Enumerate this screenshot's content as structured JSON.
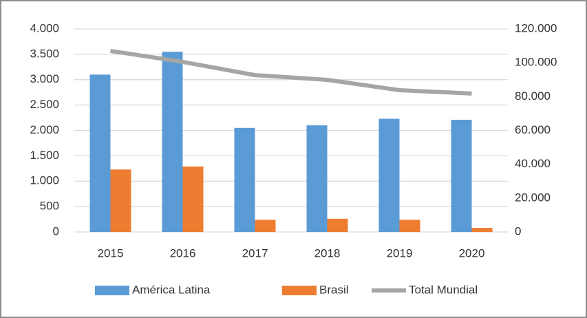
{
  "chart_data": {
    "type": "bar",
    "categories": [
      "2015",
      "2016",
      "2017",
      "2018",
      "2019",
      "2020"
    ],
    "series": [
      {
        "name": "América Latina",
        "color": "#5b9bd5",
        "values": [
          3100,
          3550,
          2050,
          2100,
          2230,
          2210
        ]
      },
      {
        "name": "Brasil",
        "color": "#ed7d31",
        "values": [
          1230,
          1290,
          240,
          260,
          240,
          80
        ]
      },
      {
        "name": "Total Mundial",
        "color": "#a5a5a5",
        "type": "line",
        "axis": "y2",
        "values": [
          107000,
          100500,
          92700,
          89900,
          83800,
          81800
        ]
      }
    ],
    "ylim": [
      0,
      4000
    ],
    "yticks": [
      0,
      500,
      {
        "value": 1000,
        "label": "1.000"
      },
      {
        "value": 1500,
        "label": "1.500"
      },
      {
        "value": 2000,
        "label": "2.000"
      },
      {
        "value": 2500,
        "label": "2.500"
      },
      {
        "value": 3000,
        "label": "3.000"
      },
      {
        "value": 3500,
        "label": "3.500"
      },
      {
        "value": 4000,
        "label": "4.000"
      }
    ],
    "y2lim": [
      0,
      120000
    ],
    "y2ticks": [
      0,
      {
        "value": 20000,
        "label": "20.000"
      },
      {
        "value": 40000,
        "label": "40.000"
      },
      {
        "value": 60000,
        "label": "60.000"
      },
      {
        "value": 80000,
        "label": "80.000"
      },
      {
        "value": 100000,
        "label": "100.000"
      },
      {
        "value": 120000,
        "label": "120.000"
      }
    ],
    "grid": true,
    "legend": "bottom"
  }
}
